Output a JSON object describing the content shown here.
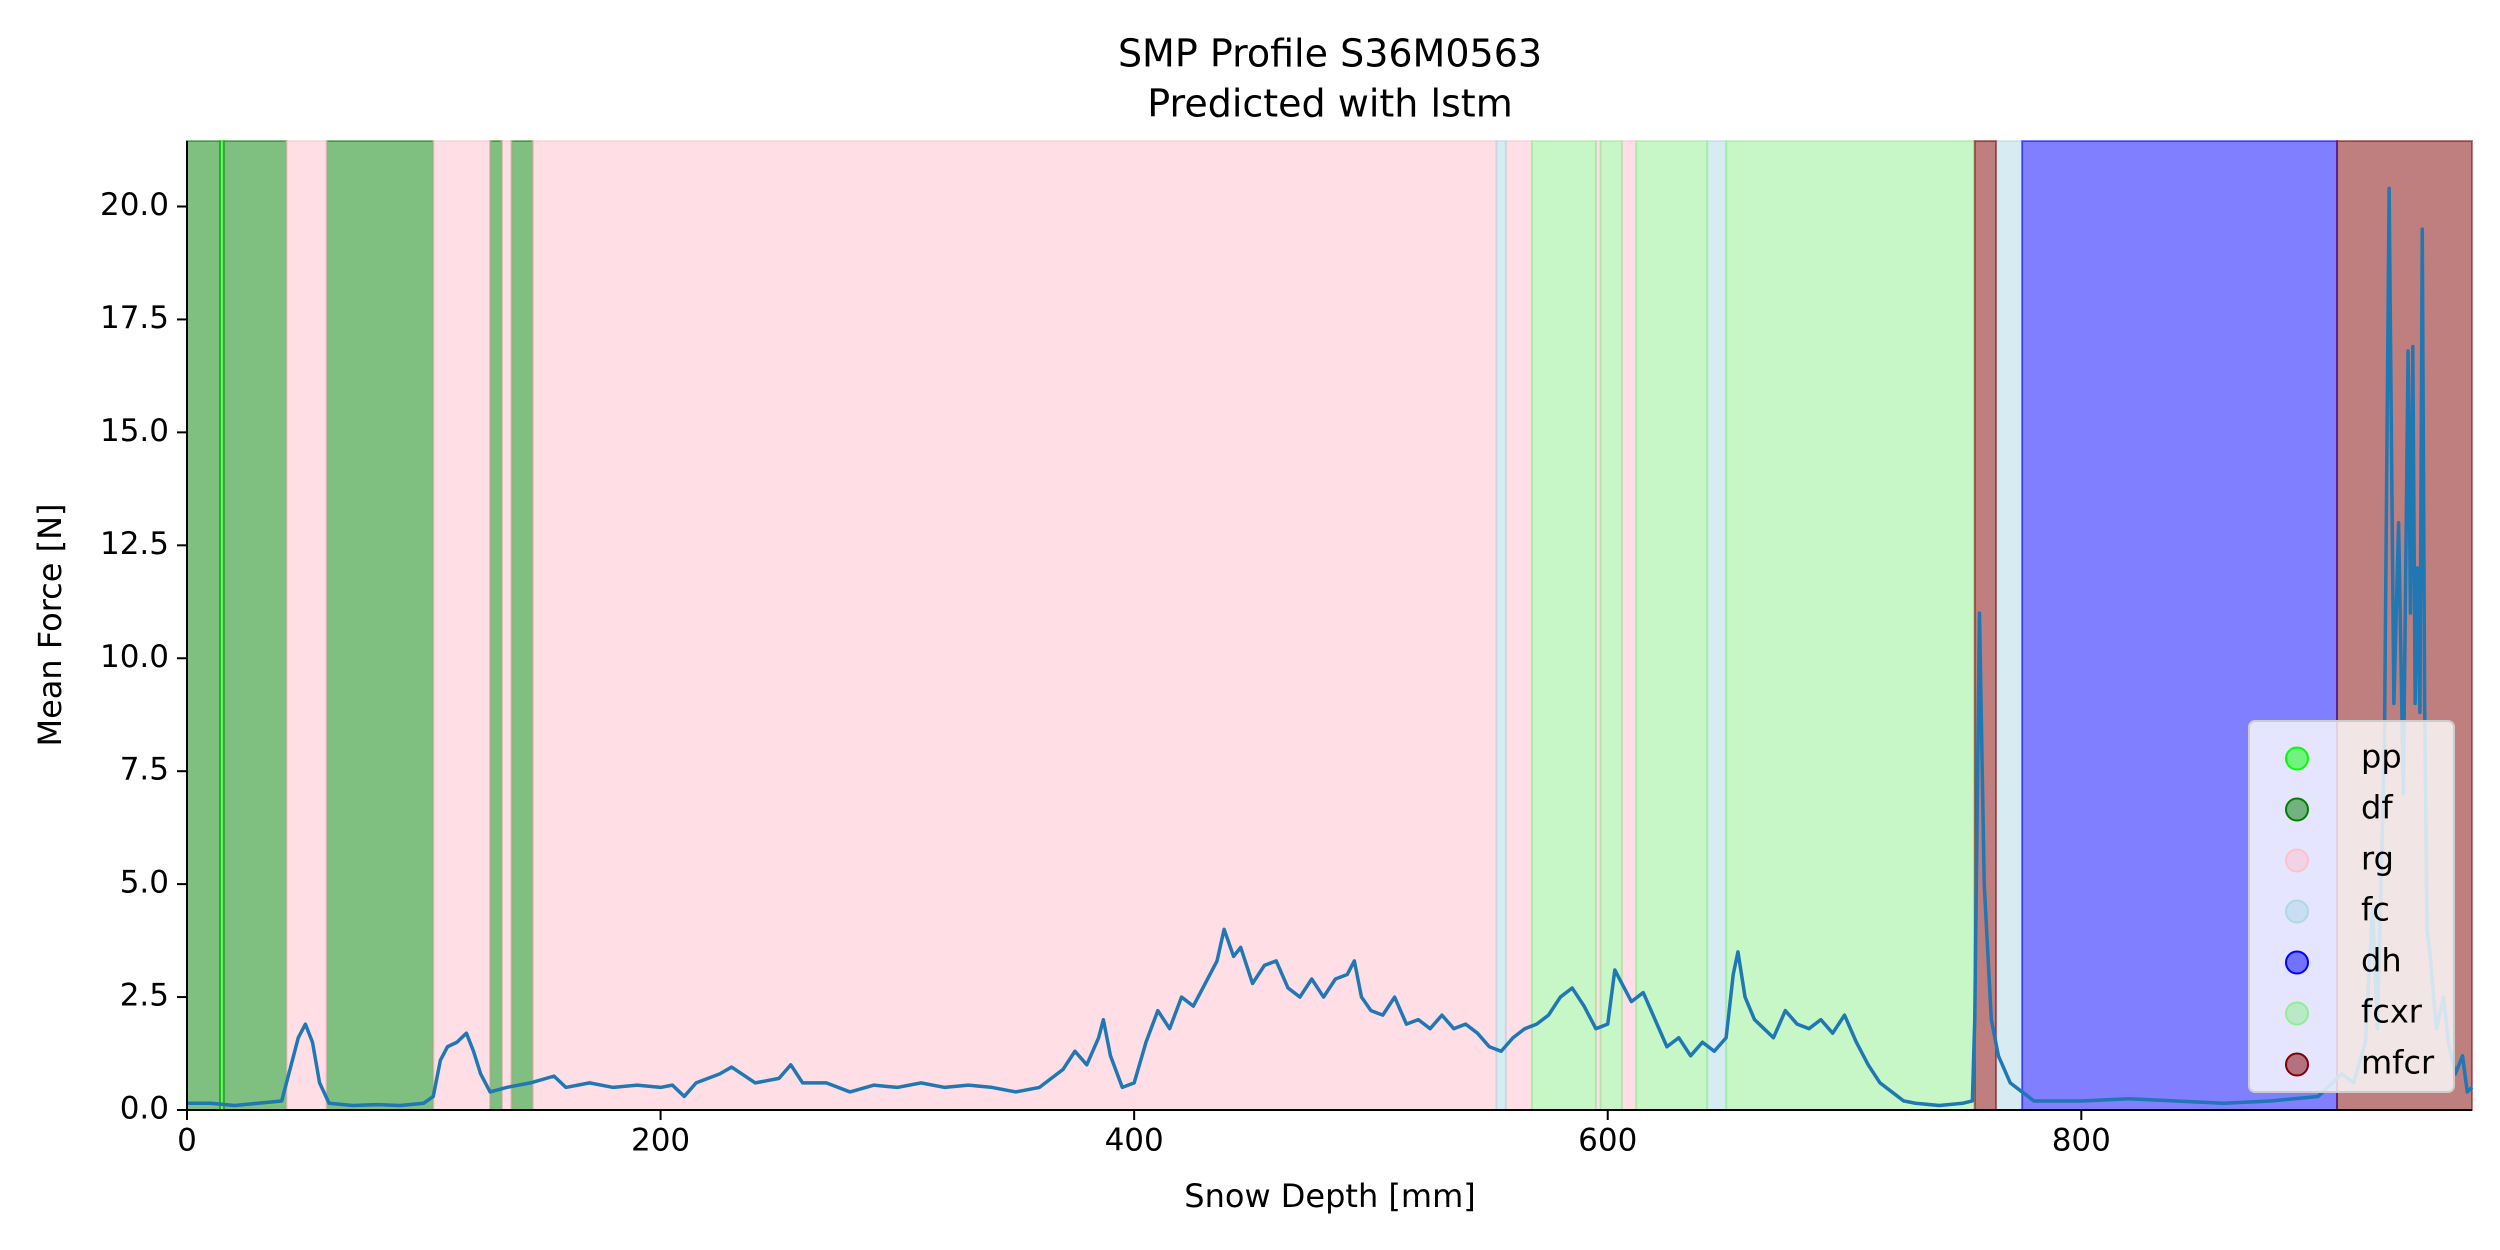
{
  "chart_data": {
    "type": "line",
    "title": "SMP Profile S36M0563",
    "subtitle": "Predicted with lstm",
    "xlabel": "Snow Depth [mm]",
    "ylabel": "Mean Force [N]",
    "xlim": [
      0,
      965
    ],
    "ylim": [
      0,
      21.45
    ],
    "xticks": [
      0,
      200,
      400,
      600,
      800
    ],
    "yticks": [
      {
        "value": 0,
        "label": "0.0"
      },
      {
        "value": 2.5,
        "label": "2.5"
      },
      {
        "value": 5,
        "label": "5.0"
      },
      {
        "value": 7.5,
        "label": "7.5"
      },
      {
        "value": 10,
        "label": "10.0"
      },
      {
        "value": 12.5,
        "label": "12.5"
      },
      {
        "value": 15,
        "label": "15.0"
      },
      {
        "value": 17.5,
        "label": "17.5"
      },
      {
        "value": 20,
        "label": "20.0"
      }
    ],
    "grid": false,
    "legend_position": "lower right",
    "span_alpha": 0.5,
    "color": "#1f77b4",
    "classes": [
      {
        "name": "pp",
        "color": "#00ff00",
        "spans": [
          [
            14,
            15.5
          ]
        ]
      },
      {
        "name": "df",
        "color": "#008000",
        "spans": [
          [
            0,
            14
          ],
          [
            15.5,
            42
          ],
          [
            59,
            104
          ],
          [
            128,
            133
          ],
          [
            137,
            146
          ]
        ]
      },
      {
        "name": "rg",
        "color": "#ffc0cb",
        "spans": [
          [
            42,
            59
          ],
          [
            104,
            128
          ],
          [
            133,
            137
          ],
          [
            146,
            553
          ],
          [
            557,
            568
          ],
          [
            595,
            597
          ],
          [
            606,
            612
          ]
        ]
      },
      {
        "name": "fc",
        "color": "#add8e6",
        "spans": [
          [
            553,
            557
          ],
          [
            642,
            650
          ],
          [
            764,
            775
          ]
        ]
      },
      {
        "name": "dh",
        "color": "#0000ff",
        "spans": [
          [
            775,
            908
          ]
        ]
      },
      {
        "name": "fcxr",
        "color": "#90ee90",
        "spans": [
          [
            568,
            595
          ],
          [
            597,
            606
          ],
          [
            612,
            642
          ],
          [
            650,
            755
          ]
        ]
      },
      {
        "name": "mfcr",
        "color": "#800000",
        "spans": [
          [
            755,
            764
          ],
          [
            908,
            965
          ]
        ]
      }
    ],
    "x": [
      0,
      10,
      20,
      30,
      40,
      44,
      47,
      50,
      53,
      56,
      60,
      70,
      80,
      90,
      100,
      104,
      107,
      110,
      114,
      118,
      121,
      124,
      128,
      135,
      145,
      155,
      160,
      170,
      180,
      190,
      200,
      205,
      210,
      215,
      225,
      230,
      240,
      250,
      255,
      260,
      270,
      280,
      290,
      300,
      310,
      320,
      330,
      340,
      350,
      360,
      370,
      375,
      380,
      385,
      387,
      390,
      395,
      400,
      405,
      410,
      415,
      420,
      425,
      430,
      435,
      438,
      442,
      445,
      450,
      455,
      460,
      465,
      470,
      475,
      480,
      485,
      490,
      493,
      496,
      500,
      505,
      510,
      515,
      520,
      525,
      530,
      535,
      540,
      545,
      550,
      555,
      560,
      565,
      570,
      575,
      580,
      585,
      590,
      595,
      600,
      603,
      606,
      610,
      615,
      620,
      625,
      630,
      635,
      640,
      645,
      650,
      653,
      655,
      658,
      662,
      666,
      670,
      675,
      680,
      685,
      690,
      695,
      700,
      705,
      710,
      715,
      720,
      725,
      730,
      740,
      750,
      754,
      755,
      757,
      759,
      762,
      765,
      770,
      775,
      780,
      800,
      820,
      840,
      860,
      880,
      900,
      910,
      915,
      920,
      923,
      925,
      928,
      930,
      932,
      934,
      936,
      938,
      939,
      940,
      941,
      942,
      943,
      944,
      945,
      946,
      947,
      950,
      953,
      955,
      958,
      961,
      963,
      965
    ],
    "values": [
      0.15,
      0.15,
      0.1,
      0.15,
      0.2,
      1.0,
      1.6,
      1.9,
      1.5,
      0.6,
      0.15,
      0.1,
      0.12,
      0.1,
      0.15,
      0.3,
      1.1,
      1.4,
      1.5,
      1.7,
      1.3,
      0.8,
      0.4,
      0.5,
      0.6,
      0.75,
      0.5,
      0.6,
      0.5,
      0.55,
      0.5,
      0.55,
      0.3,
      0.6,
      0.8,
      0.95,
      0.6,
      0.7,
      1.0,
      0.6,
      0.6,
      0.4,
      0.55,
      0.5,
      0.6,
      0.5,
      0.55,
      0.5,
      0.4,
      0.5,
      0.9,
      1.3,
      1.0,
      1.6,
      2.0,
      1.2,
      0.5,
      0.6,
      1.5,
      2.2,
      1.8,
      2.5,
      2.3,
      2.8,
      3.3,
      4.0,
      3.4,
      3.6,
      2.8,
      3.2,
      3.3,
      2.7,
      2.5,
      2.9,
      2.5,
      2.9,
      3.0,
      3.3,
      2.5,
      2.2,
      2.1,
      2.5,
      1.9,
      2.0,
      1.8,
      2.1,
      1.8,
      1.9,
      1.7,
      1.4,
      1.3,
      1.6,
      1.8,
      1.9,
      2.1,
      2.5,
      2.7,
      2.3,
      1.8,
      1.9,
      3.1,
      2.8,
      2.4,
      2.6,
      2.0,
      1.4,
      1.6,
      1.2,
      1.5,
      1.3,
      1.6,
      3.0,
      3.5,
      2.5,
      2.0,
      1.8,
      1.6,
      2.2,
      1.9,
      1.8,
      2.0,
      1.7,
      2.1,
      1.5,
      1.0,
      0.6,
      0.4,
      0.2,
      0.15,
      0.1,
      0.15,
      0.2,
      2.0,
      11.0,
      5.0,
      2.0,
      1.2,
      0.6,
      0.4,
      0.2,
      0.2,
      0.25,
      0.2,
      0.15,
      0.2,
      0.3,
      0.8,
      0.6,
      1.5,
      4.5,
      1.8,
      8.0,
      20.4,
      9.0,
      13.0,
      7.0,
      16.8,
      11.0,
      16.9,
      9.0,
      12.0,
      8.8,
      19.5,
      9.0,
      4.0,
      3.6,
      1.8,
      2.5,
      1.5,
      0.8,
      1.2,
      0.4,
      0.5
    ]
  }
}
